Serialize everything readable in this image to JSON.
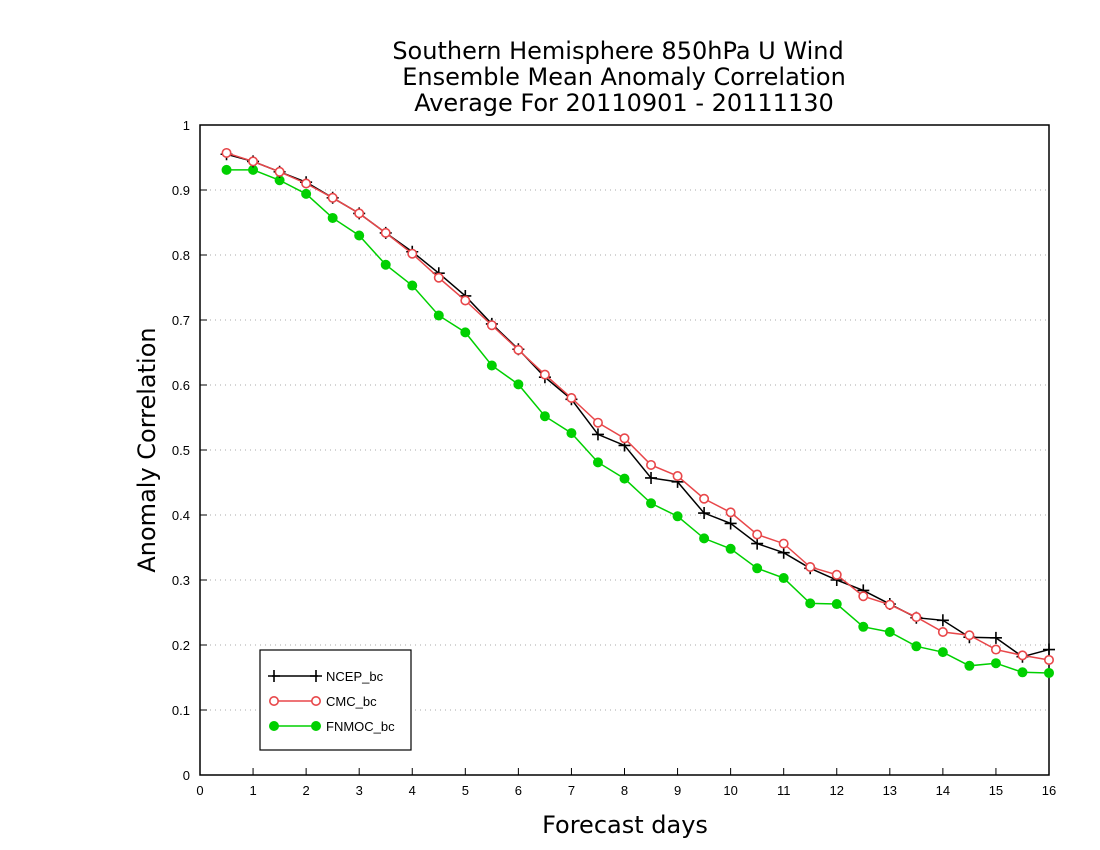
{
  "chart_data": {
    "type": "line",
    "title_lines": [
      "Southern Hemisphere 850hPa U Wind",
      "Ensemble Mean Anomaly Correlation",
      "Average For 20110901 - 20111130"
    ],
    "xlabel": "Forecast days",
    "ylabel": "Anomaly Correlation",
    "xlim": [
      0,
      16
    ],
    "ylim": [
      0,
      1
    ],
    "x_ticks": [
      "0",
      "1",
      "2",
      "3",
      "4",
      "5",
      "6",
      "7",
      "8",
      "9",
      "10",
      "11",
      "12",
      "13",
      "14",
      "15",
      "16"
    ],
    "y_ticks": [
      "0",
      "0.1",
      "0.2",
      "0.3",
      "0.4",
      "0.5",
      "0.6",
      "0.7",
      "0.8",
      "0.9",
      "1"
    ],
    "grid": "horizontal dotted",
    "legend_position": "bottom-left",
    "x": [
      0.5,
      1,
      1.5,
      2,
      2.5,
      3,
      3.5,
      4,
      4.5,
      5,
      5.5,
      6,
      6.5,
      7,
      7.5,
      8,
      8.5,
      9,
      9.5,
      10,
      10.5,
      11,
      11.5,
      12,
      12.5,
      13,
      13.5,
      14,
      14.5,
      15,
      15.5,
      16
    ],
    "series": [
      {
        "name": "NCEP_bc",
        "color": "#000000",
        "marker": "plus",
        "values": [
          0.955,
          0.944,
          0.928,
          0.912,
          0.888,
          0.864,
          0.834,
          0.805,
          0.772,
          0.737,
          0.694,
          0.655,
          0.612,
          0.578,
          0.524,
          0.507,
          0.457,
          0.451,
          0.403,
          0.387,
          0.356,
          0.342,
          0.318,
          0.3,
          0.284,
          0.263,
          0.242,
          0.238,
          0.212,
          0.211,
          0.182,
          0.193
        ]
      },
      {
        "name": "CMC_bc",
        "color": "#e8474a",
        "marker": "open-circle",
        "values": [
          0.957,
          0.944,
          0.928,
          0.91,
          0.888,
          0.864,
          0.834,
          0.802,
          0.765,
          0.73,
          0.692,
          0.654,
          0.616,
          0.58,
          0.542,
          0.518,
          0.477,
          0.46,
          0.425,
          0.404,
          0.37,
          0.356,
          0.32,
          0.308,
          0.275,
          0.262,
          0.243,
          0.22,
          0.215,
          0.193,
          0.184,
          0.177
        ]
      },
      {
        "name": "FNMOC_bc",
        "color": "#00d000",
        "marker": "filled-circle",
        "values": [
          0.931,
          0.931,
          0.915,
          0.894,
          0.857,
          0.83,
          0.785,
          0.753,
          0.707,
          0.681,
          0.63,
          0.601,
          0.552,
          0.526,
          0.481,
          0.456,
          0.418,
          0.398,
          0.364,
          0.348,
          0.318,
          0.303,
          0.264,
          0.263,
          0.228,
          0.22,
          0.198,
          0.189,
          0.168,
          0.172,
          0.158,
          0.157
        ]
      }
    ]
  }
}
